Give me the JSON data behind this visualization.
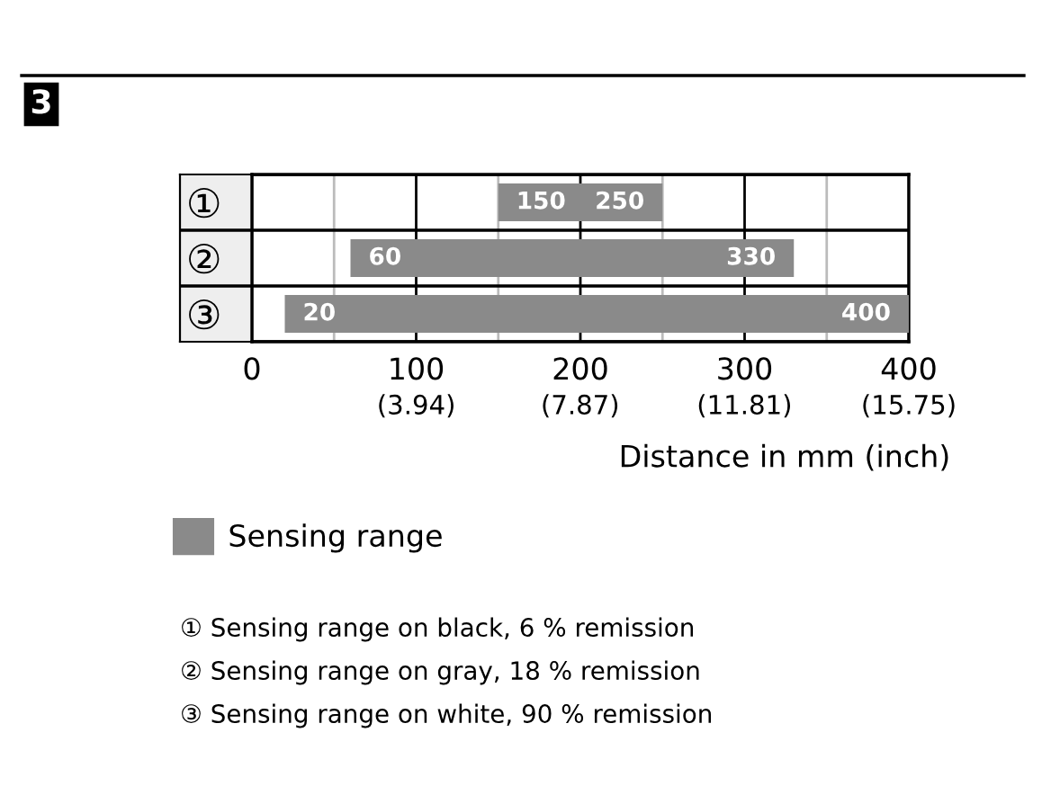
{
  "chart_data": {
    "type": "bar",
    "orientation": "horizontal",
    "title": "3",
    "categories": [
      "①",
      "②",
      "③"
    ],
    "series": [
      {
        "name": "Sensing range",
        "color": "#8a8a8a",
        "base": [
          150,
          60,
          20
        ],
        "values": [
          100,
          270,
          380
        ]
      }
    ],
    "xlim": [
      0,
      400
    ],
    "xticks": [
      0,
      {
        "value": 50,
        "label": null
      },
      100,
      {
        "value": 150,
        "label": null
      },
      200,
      {
        "value": 250,
        "label": null
      },
      300,
      {
        "value": 350,
        "label": null
      },
      400
    ],
    "x2lim": [
      0,
      15.75
    ],
    "x2ticks": [
      {
        "value": 3.94,
        "label": "(3.94)"
      },
      {
        "value": 7.87,
        "label": "(7.87)"
      },
      {
        "value": 11.81,
        "label": "(11.81)"
      },
      {
        "value": 15.75,
        "label": "(15.75)"
      }
    ],
    "xlabel": "Distance in mm (inch)",
    "grid": "x",
    "legend": "bottom left",
    "annotations": [
      {
        "text": "150",
        "x": 150,
        "y": "①"
      },
      {
        "text": "250",
        "x": 250,
        "y": "①"
      },
      {
        "text": "60",
        "x": 60,
        "y": "②"
      },
      {
        "text": "330",
        "x": 330,
        "y": "②"
      },
      {
        "text": "20",
        "x": 20,
        "y": "③"
      },
      {
        "text": "400",
        "x": 400,
        "y": "③"
      },
      "① Sensing range on black, 6 % remission",
      "② Sensing range on gray, 18 % remission",
      "③ Sensing range on white, 90 % remission"
    ]
  }
}
